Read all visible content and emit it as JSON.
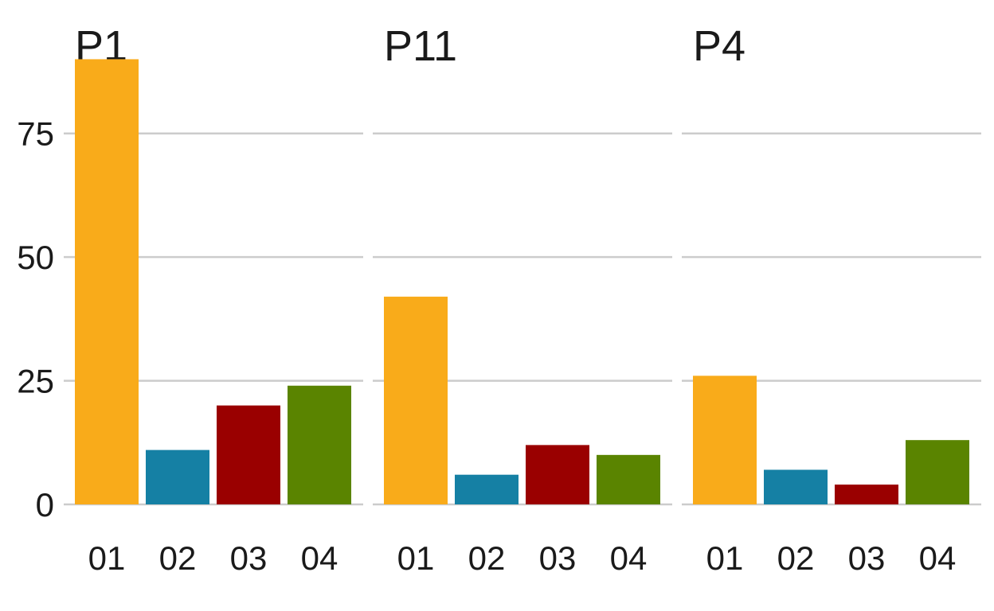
{
  "chart_data": {
    "type": "bar",
    "layout": "facets",
    "categories": [
      "01",
      "02",
      "03",
      "04"
    ],
    "category_colors": [
      "#F9AB1A",
      "#1580A4",
      "#9A0000",
      "#5A8400"
    ],
    "ylim": [
      0,
      92
    ],
    "yticks": [
      0,
      25,
      50,
      75
    ],
    "ytick_labels": [
      "0",
      "25",
      "50",
      "75"
    ],
    "grid": "horizontal",
    "panels": [
      {
        "title": "P1",
        "values": [
          90,
          11,
          20,
          24
        ]
      },
      {
        "title": "P11",
        "values": [
          42,
          6,
          12,
          10
        ]
      },
      {
        "title": "P4",
        "values": [
          26,
          7,
          4,
          13
        ]
      }
    ]
  }
}
